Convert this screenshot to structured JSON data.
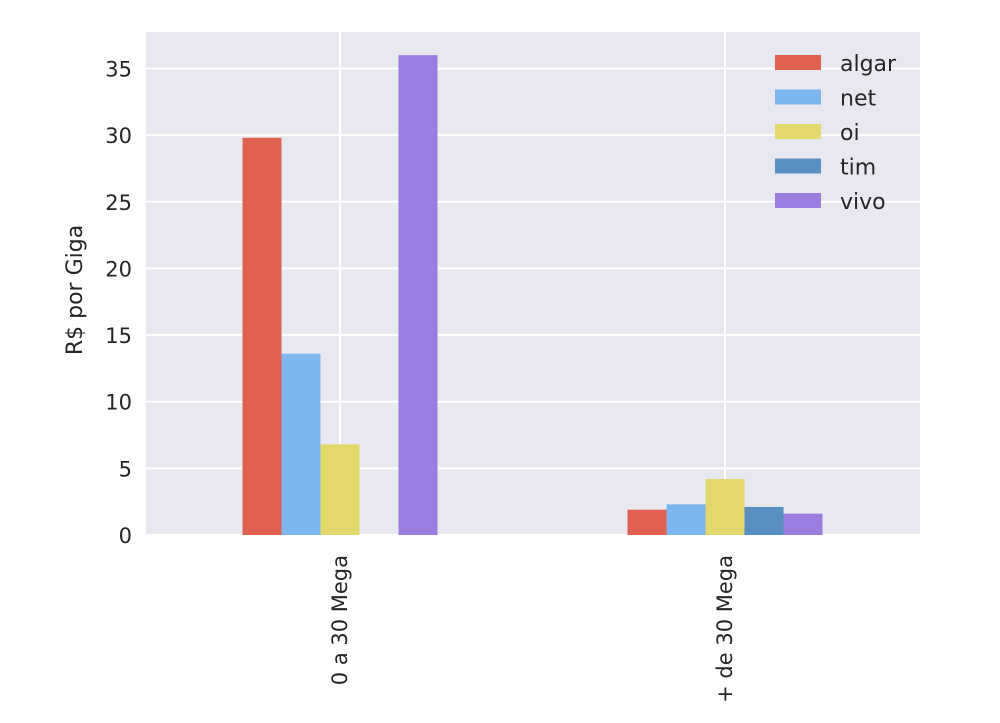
{
  "chart_data": {
    "type": "bar",
    "categories": [
      "0 a 30 Mega",
      "+ de 30 Mega"
    ],
    "series": [
      {
        "name": "algar",
        "color": "#e06150",
        "values": [
          29.8,
          1.9
        ]
      },
      {
        "name": "net",
        "color": "#7eb6f0",
        "values": [
          13.6,
          2.3
        ]
      },
      {
        "name": "oi",
        "color": "#e2d86c",
        "values": [
          6.8,
          4.2
        ]
      },
      {
        "name": "tim",
        "color": "#5a8fc2",
        "values": [
          0,
          2.1
        ]
      },
      {
        "name": "vivo",
        "color": "#9b7de0",
        "values": [
          36.0,
          1.6
        ]
      }
    ],
    "xlabel": "",
    "ylabel": "R$ por Giga",
    "ylim": [
      0,
      38
    ],
    "yticks": [
      0,
      5,
      10,
      15,
      20,
      25,
      30,
      35
    ],
    "grid": true,
    "legend_position": "top-right",
    "background_color": "#e8e8f0",
    "grid_color": "#ffffff"
  }
}
